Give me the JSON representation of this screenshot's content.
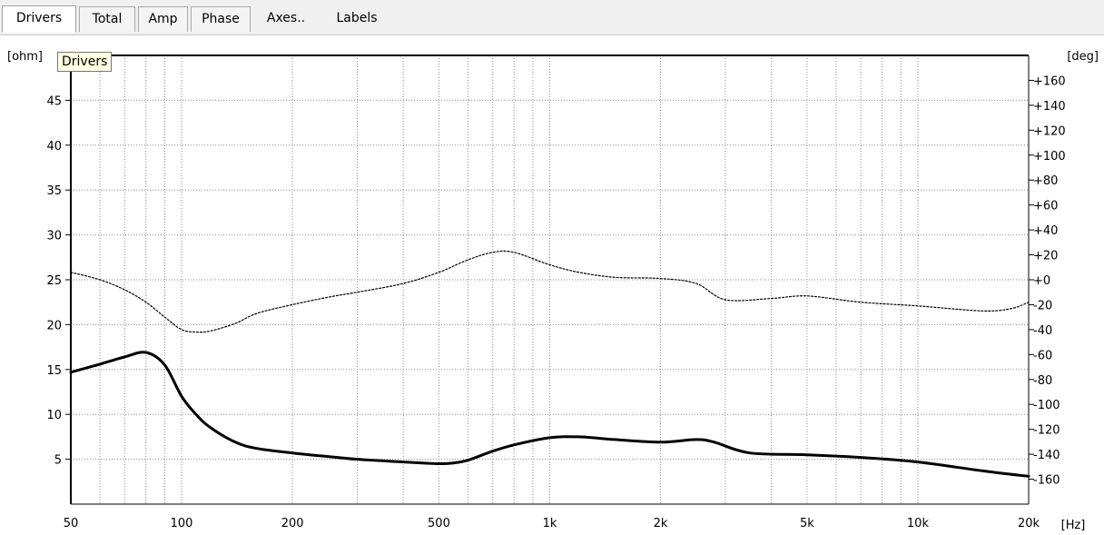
{
  "tabs": [
    {
      "label": "Drivers",
      "style": "active"
    },
    {
      "label": "Total",
      "style": "boxed"
    },
    {
      "label": "Amp",
      "style": "boxed"
    },
    {
      "label": "Phase",
      "style": "boxed"
    },
    {
      "label": "Axes..",
      "style": "flat"
    },
    {
      "label": "Labels",
      "style": "flat"
    }
  ],
  "tooltip": "Drivers",
  "chart_data": {
    "type": "line",
    "xscale": "log",
    "xlim": [
      50,
      20000
    ],
    "xlabel": "[Hz]",
    "x_ticks": [
      50,
      100,
      200,
      500,
      1000,
      2000,
      5000,
      10000,
      20000
    ],
    "x_tick_labels": [
      "50",
      "100",
      "200",
      "500",
      "1k",
      "2k",
      "5k",
      "10k",
      "20k"
    ],
    "y_left": {
      "label": "[ohm]",
      "lim": [
        0,
        50
      ],
      "ticks": [
        5,
        10,
        15,
        20,
        25,
        30,
        35,
        40,
        45
      ],
      "tick_labels": [
        "5",
        "10",
        "15",
        "20",
        "25",
        "30",
        "35",
        "40",
        "45"
      ]
    },
    "y_right": {
      "label": "[deg]",
      "lim": [
        -180,
        180
      ],
      "ticks": [
        160,
        140,
        120,
        100,
        80,
        60,
        40,
        20,
        0,
        -20,
        -40,
        -60,
        -80,
        -100,
        -120,
        -140,
        -160
      ],
      "tick_labels": [
        "+160",
        "+140",
        "+120",
        "+100",
        "+80",
        "+60",
        "+40",
        "+20",
        "+0",
        "-20",
        "-40",
        "-60",
        "-80",
        "-100",
        "-120",
        "-140",
        "-160"
      ]
    },
    "grid": true,
    "series": [
      {
        "axis": "left",
        "style": "solid",
        "color": "#000000",
        "x": [
          50,
          60,
          70,
          80,
          90,
          100,
          110,
          120,
          140,
          160,
          200,
          250,
          300,
          400,
          500,
          550,
          600,
          700,
          800,
          1000,
          1200,
          1500,
          2000,
          2500,
          2800,
          3500,
          5000,
          7000,
          10000,
          15000,
          20000
        ],
        "y": [
          14.7,
          15.6,
          16.4,
          16.9,
          15.5,
          12.0,
          9.9,
          8.5,
          6.9,
          6.2,
          5.7,
          5.3,
          5.0,
          4.7,
          4.5,
          4.6,
          4.9,
          5.9,
          6.6,
          7.4,
          7.5,
          7.2,
          6.9,
          7.2,
          6.9,
          5.7,
          5.5,
          5.2,
          4.7,
          3.7,
          3.1
        ]
      },
      {
        "axis": "right",
        "style": "dotted",
        "color": "#000000",
        "x": [
          50,
          60,
          70,
          80,
          90,
          100,
          110,
          120,
          140,
          160,
          200,
          250,
          300,
          400,
          500,
          600,
          700,
          800,
          1000,
          1200,
          1500,
          2000,
          2500,
          3000,
          4000,
          5000,
          7000,
          10000,
          15000,
          18000,
          20000
        ],
        "y": [
          6,
          0,
          -8,
          -18,
          -30,
          -40,
          -42,
          -41,
          -35,
          -27,
          -20,
          -14,
          -10,
          -3,
          6,
          16,
          22,
          22,
          12,
          6,
          2,
          1,
          -3,
          -16,
          -15,
          -13,
          -18,
          -21,
          -25,
          -23,
          -18
        ]
      }
    ]
  }
}
